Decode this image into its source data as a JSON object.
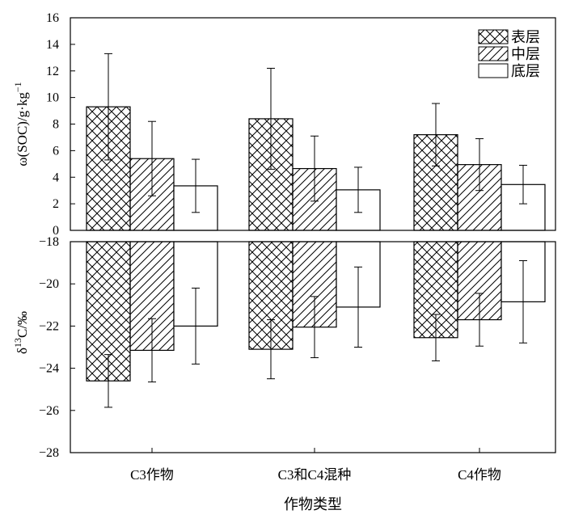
{
  "chart_data": [
    {
      "type": "bar",
      "panel": "top",
      "ylabel_parts": [
        "ω(SOC)/g·kg",
        "−1"
      ],
      "xlabel": "作物类型",
      "categories": [
        "C3作物",
        "C3和C4混种",
        "C4作物"
      ],
      "ylim": [
        0,
        16
      ],
      "yticks": [
        0,
        2,
        4,
        6,
        8,
        10,
        12,
        14,
        16
      ],
      "legend_position": "top-right",
      "series": [
        {
          "name": "表层",
          "values": [
            9.3,
            8.4,
            7.2
          ],
          "errors": [
            4.0,
            3.8,
            2.35
          ],
          "fill": "crosshatch"
        },
        {
          "name": "中层",
          "values": [
            5.4,
            4.65,
            4.95
          ],
          "errors": [
            2.8,
            2.45,
            1.95
          ],
          "fill": "diagonal"
        },
        {
          "name": "底层",
          "values": [
            3.35,
            3.05,
            3.45
          ],
          "errors": [
            2.0,
            1.7,
            1.45
          ],
          "fill": "white"
        }
      ]
    },
    {
      "type": "bar",
      "panel": "bottom",
      "ylabel_parts": [
        "δ",
        "13",
        "C/‰"
      ],
      "categories": [
        "C3作物",
        "C3和C4混种",
        "C4作物"
      ],
      "ylim": [
        -28,
        -18
      ],
      "yticks": [
        -28,
        -26,
        -24,
        -22,
        -20,
        -18
      ],
      "tick_labels": [
        "−28",
        "−26",
        "−24",
        "−22",
        "−20",
        "−18"
      ],
      "bars_hang_from": -18,
      "series": [
        {
          "name": "表层",
          "values": [
            -24.6,
            -23.1,
            -22.55
          ],
          "errors": [
            1.25,
            1.4,
            1.1
          ],
          "fill": "crosshatch"
        },
        {
          "name": "中层",
          "values": [
            -23.15,
            -22.05,
            -21.7
          ],
          "errors": [
            1.5,
            1.45,
            1.25
          ],
          "fill": "diagonal"
        },
        {
          "name": "底层",
          "values": [
            -22.0,
            -21.1,
            -20.85
          ],
          "errors": [
            1.8,
            1.9,
            1.95
          ],
          "fill": "white"
        }
      ]
    }
  ]
}
